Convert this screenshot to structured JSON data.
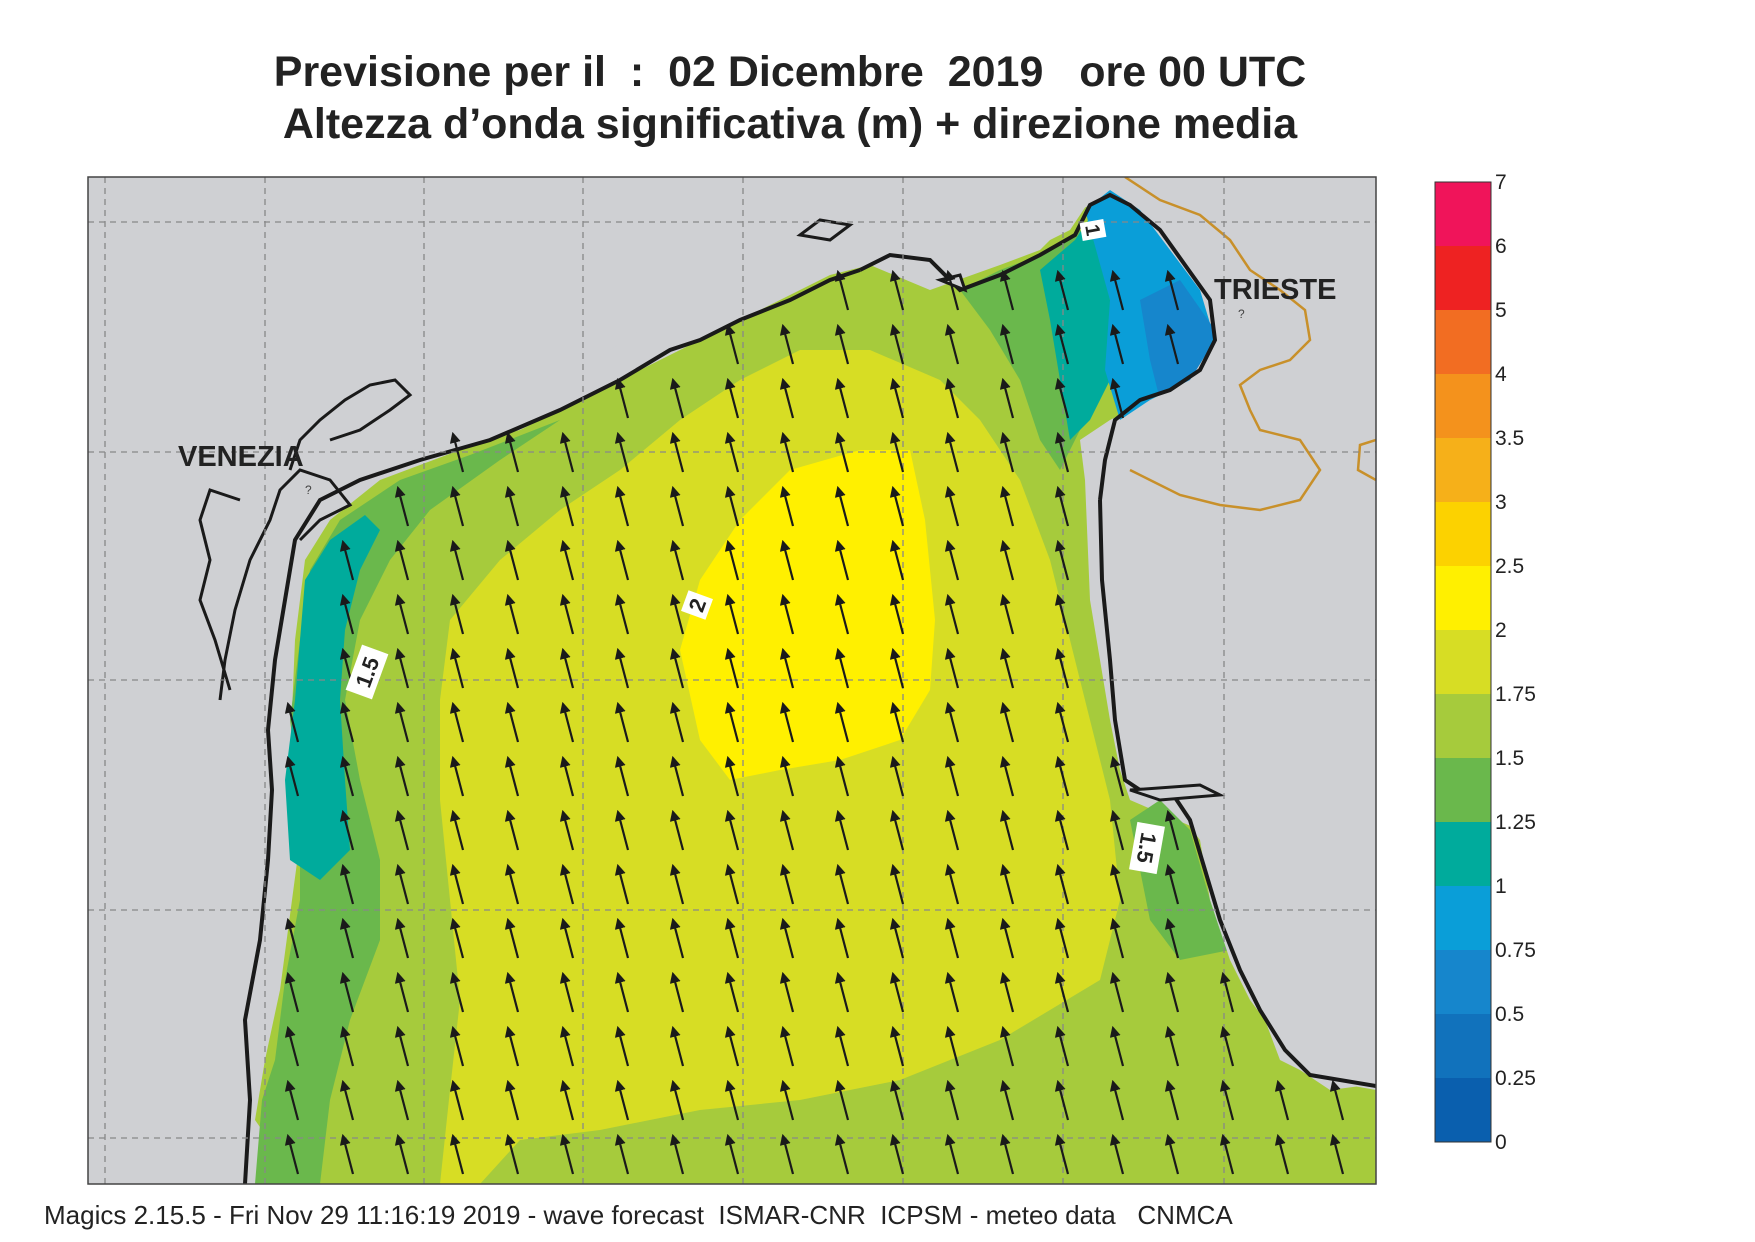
{
  "title": {
    "line1": "Previsione per il  :  02 Dicembre  2019   ore 00 UTC",
    "line2": "Altezza d’onda significativa (m) + direzione media"
  },
  "map": {
    "cities": [
      {
        "name": "VENEZIA"
      },
      {
        "name": "TRIESTE"
      }
    ],
    "contour_labels": [
      "1",
      "2",
      "1.5",
      "1.5"
    ],
    "arrow_direction": "north-northwest",
    "colors": {
      "land": "#cfd0d3",
      "coast": "#1a1a1a",
      "border": "#c8902a",
      "arrow": "#1a1a1a"
    }
  },
  "colorbar": {
    "labels": [
      "7",
      "6",
      "5",
      "4",
      "3.5",
      "3",
      "2.5",
      "2",
      "1.75",
      "1.5",
      "1.25",
      "1",
      "0.75",
      "0.5",
      "0.25",
      "0"
    ],
    "colors": [
      "#f0145a",
      "#ee2222",
      "#f26d22",
      "#f4921c",
      "#f6b019",
      "#fcd200",
      "#fff000",
      "#d7dd24",
      "#a6cb3c",
      "#6ab84c",
      "#00ab9c",
      "#0a9ed8",
      "#1686cc",
      "#1172bc",
      "#0a5fae"
    ]
  },
  "footer": "Magics 2.15.5 - Fri Nov 29 11:16:19 2019 - wave forecast  ISMAR-CNR  ICPSM - meteo data   CNMCA"
}
